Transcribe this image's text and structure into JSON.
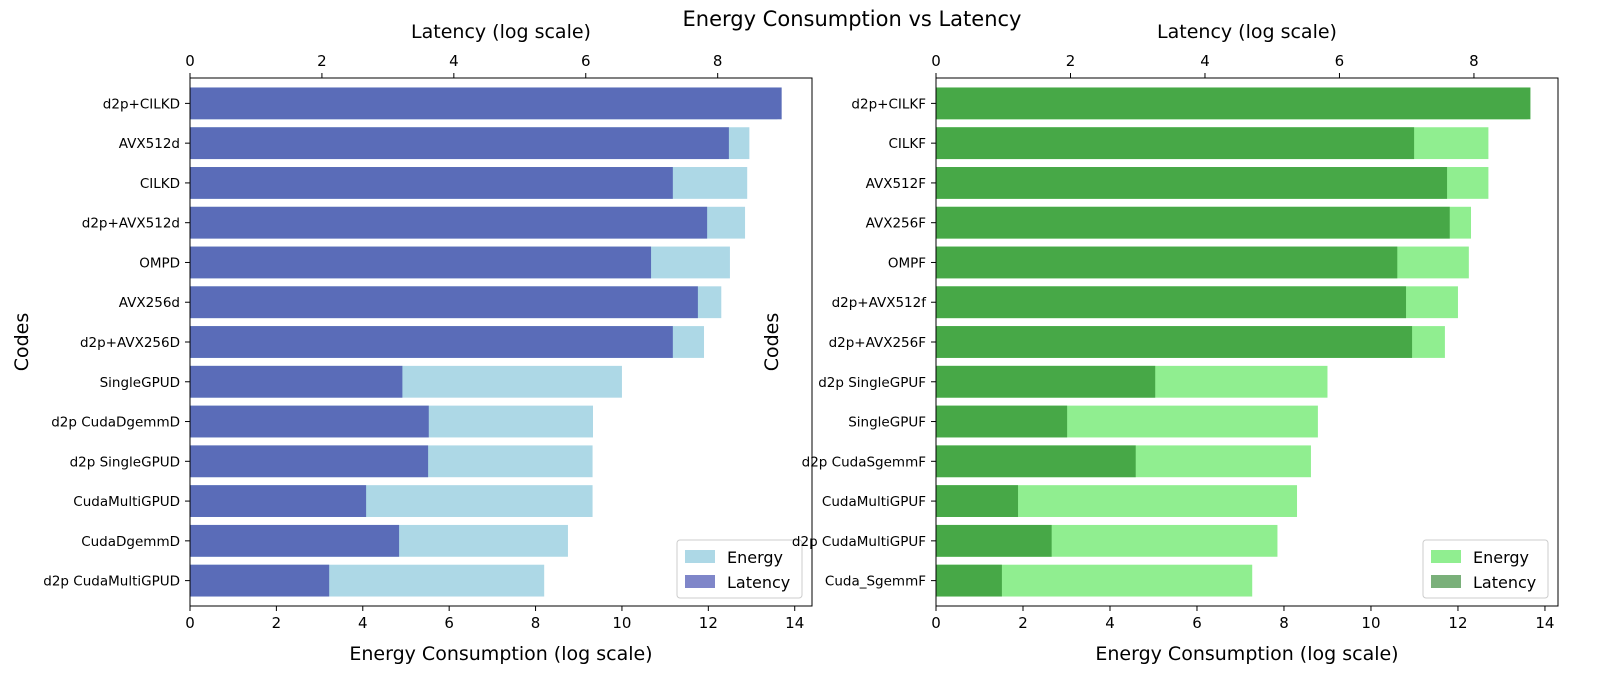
{
  "title": "Energy Consumption vs Latency",
  "chart_data": [
    {
      "type": "bar",
      "orientation": "horizontal",
      "categories": [
        "d2p+CILKD",
        "AVX512d",
        "CILKD",
        "d2p+AVX512d",
        "OMPD",
        "AVX256d",
        "d2p+AVX256D",
        "SingleGPUD",
        "d2p CudaDgemmD",
        "d2p SingleGPUD",
        "CudaMultiGPUD",
        "CudaDgemmD",
        "d2p CudaMultiGPUD"
      ],
      "series": [
        {
          "name": "Energy",
          "color": "#add8e6",
          "axis": "bottom",
          "values": [
            13.6,
            12.95,
            12.9,
            12.85,
            12.5,
            12.3,
            11.9,
            10.0,
            9.33,
            9.32,
            9.32,
            8.75,
            8.2
          ]
        },
        {
          "name": "Latency",
          "color": "#5a6cb8",
          "axis": "top",
          "values": [
            8.97,
            8.17,
            7.32,
            7.84,
            6.99,
            7.7,
            7.32,
            3.22,
            3.62,
            3.61,
            2.67,
            3.17,
            2.11
          ]
        }
      ],
      "xlabel": "Energy Consumption (log scale)",
      "x2label": "Latency (log scale)",
      "ylabel": "Codes",
      "xlim": [
        0,
        14.4
      ],
      "x2lim": [
        0,
        9.43
      ],
      "xticks": [
        0,
        2,
        4,
        6,
        8,
        10,
        12,
        14
      ],
      "x2ticks": [
        0,
        2,
        4,
        6,
        8
      ],
      "legend": {
        "position": "lower-right",
        "entries": [
          {
            "label": "Energy",
            "color": "#add8e6"
          },
          {
            "label": "Latency",
            "color": "#7f86c9"
          }
        ]
      }
    },
    {
      "type": "bar",
      "orientation": "horizontal",
      "categories": [
        "d2p+CILKF",
        "CILKF",
        "AVX512F",
        "AVX256F",
        "OMPF",
        "d2p+AVX512f",
        "d2p+AVX256F",
        "d2p SingleGPUF",
        "SingleGPUF",
        "d2p CudaSgemmF",
        "CudaMultiGPUF",
        "d2p CudaMultiGPUF",
        "Cuda_SgemmF"
      ],
      "series": [
        {
          "name": "Energy",
          "color": "#90ee90",
          "axis": "bottom",
          "values": [
            13.6,
            12.7,
            12.7,
            12.3,
            12.25,
            12.0,
            11.7,
            9.0,
            8.78,
            8.62,
            8.3,
            7.85,
            7.27
          ]
        },
        {
          "name": "Latency",
          "color": "#47a847",
          "axis": "top",
          "values": [
            8.84,
            7.11,
            7.6,
            7.64,
            6.86,
            6.99,
            7.08,
            3.26,
            1.95,
            2.97,
            1.22,
            1.72,
            0.98
          ]
        }
      ],
      "xlabel": "Energy Consumption (log scale)",
      "x2label": "Latency (log scale)",
      "ylabel": "Codes",
      "xlim": [
        0,
        14.3
      ],
      "x2lim": [
        0,
        9.25
      ],
      "xticks": [
        0,
        2,
        4,
        6,
        8,
        10,
        12,
        14
      ],
      "x2ticks": [
        0,
        2,
        4,
        6,
        8
      ],
      "legend": {
        "position": "lower-right",
        "entries": [
          {
            "label": "Energy",
            "color": "#90ee90"
          },
          {
            "label": "Latency",
            "color": "#7ab07a"
          }
        ]
      }
    }
  ]
}
